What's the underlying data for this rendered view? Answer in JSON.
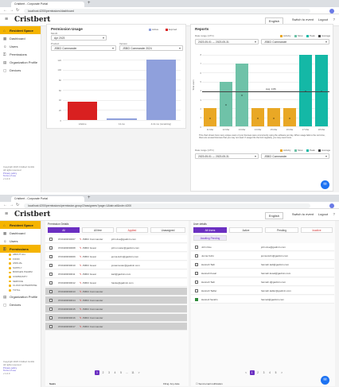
{
  "browser": {
    "tab_title": "Cristbert - Corporate Portal",
    "url_1": "localhost:4200/permissions/dashboard",
    "url_2": "localhost:4200/permissions/permission-group/2/assignees?page=1&tab=all&role=4200",
    "add_tab": "+"
  },
  "header": {
    "logo": "Cristbert",
    "language": "English",
    "switch_account": "Switch to event",
    "logout": "Logout"
  },
  "sidebar": {
    "items": [
      {
        "label": "Resident Space",
        "icon": "home-icon"
      },
      {
        "label": "Dashboard",
        "icon": "dashboard-icon"
      },
      {
        "label": "Users",
        "icon": "users-icon"
      },
      {
        "label": "Permissions",
        "icon": "key-icon"
      },
      {
        "label": "Organization Profile",
        "icon": "building-icon"
      },
      {
        "label": "Devices",
        "icon": "device-icon"
      }
    ],
    "sub_items": [
      "ABOUT ALL",
      "FOOD",
      "ANNUAL",
      "SUPPLY",
      "BORGEN PHARM",
      "COMMUNITY",
      "SERVICE",
      "CLOUD ENTERPRISE",
      "TOTAL"
    ],
    "footer": [
      "Copyright 2023 Cristbert GmbH",
      "All rights reserved",
      "Privacy policy",
      "Terms of use",
      "v 1.0.0"
    ]
  },
  "shot1": {
    "usage_card": {
      "title": "Permission Usage",
      "period_label": "Month",
      "period_value": "Apr 2023",
      "product_label": "Product",
      "product_value": "JSBCI Commander",
      "version_label": "Version",
      "version_value": "JSBCI Commander 2024",
      "legend": [
        "Active",
        "Expired"
      ],
      "ticks": [
        "120",
        "100",
        "80",
        "60",
        "40",
        "20",
        "0"
      ]
    },
    "reports_card": {
      "title": "Reports",
      "date_label": "Date range (UTC)",
      "date_value": "2023-05-01 — 2023-05-31",
      "product_value": "JSBCI Commander",
      "legend": [
        "Activity",
        "Slow",
        "Peak",
        "Average"
      ],
      "avg_label": "Avg: 3.86",
      "ticks": [
        "8",
        "7",
        "6",
        "5",
        "4",
        "3",
        "2",
        "1",
        "0"
      ],
      "y_axis_title": "Total users",
      "note": "This chart shows how many unique users of your licenses were concurrently using the software per day. When usage falls to the red zone, there are unused licenses that you may not need. If usage hits the limit regularly, you may need more.",
      "date_label_2": "Date range (UTC)",
      "date_value_2": "2023-05-01 — 2023-05-31",
      "product_value_2": "JSBCI Commander",
      "legend_2": [
        "Activity",
        "Slow",
        "Peak",
        "Average"
      ]
    }
  },
  "chart_data": [
    {
      "type": "bar",
      "title": "Permission Usage",
      "categories": [
        "Lifetime",
        "12-mo",
        "4-12-mo (remaining)"
      ],
      "values": [
        36,
        3,
        120
      ],
      "colors": [
        "#d92020",
        "#8fa0dc",
        "#8fa0dc"
      ],
      "ylim": [
        0,
        130
      ],
      "grid": true,
      "legend": "top-right"
    },
    {
      "type": "bar",
      "title": "Reports",
      "ylabel": "Total users",
      "categories": [
        "11 Mar",
        "12 Mar",
        "13 Mar",
        "14 Mar",
        "15 Mar",
        "16 Mar",
        "17 Mar",
        "18 Mar"
      ],
      "values": [
        2,
        5,
        7,
        2,
        2,
        2,
        8,
        8
      ],
      "colors": [
        "#e9a825",
        "#6fc2a8",
        "#6fc2a8",
        "#e9a825",
        "#e9a825",
        "#e9a825",
        "#14b8a6",
        "#14b8a6"
      ],
      "average": 3.86,
      "ylim": [
        0,
        8.5
      ],
      "grid": true,
      "legend": "top-right"
    }
  ],
  "shot2": {
    "left_panel": {
      "title": "Permission Details",
      "tabs": [
        "All",
        "All free",
        "Applied",
        "Unassigned"
      ],
      "rows": [
        {
          "code": "0721900030007",
          "role": "JSBCI Commander",
          "email": "john.doe@gadmin.com",
          "locked": false
        },
        {
          "code": "0721900030008",
          "role": "JSBCI Guest",
          "email": "john.muster@gadmin.com",
          "locked": false
        },
        {
          "code": "0721900030009",
          "role": "JSBCI Guest",
          "email": "jenna.kuhn@gadmin.com",
          "locked": false
        },
        {
          "code": "0721900030010",
          "role": "JSBCI Guest",
          "email": "jonasmuster@gadmin.com",
          "locked": false
        },
        {
          "code": "0721900030011",
          "role": "JSBCI Guest",
          "email": "karl@gadmin.com",
          "locked": false
        },
        {
          "code": "0721900030012",
          "role": "JSBCI Guest",
          "email": "hanke@gadmin.com",
          "locked": false
        },
        {
          "code": "0721900030013",
          "role": "JSBCI Commander",
          "email": "",
          "locked": true
        },
        {
          "code": "0721900030014",
          "role": "JSBCI Commander",
          "email": "",
          "locked": true
        },
        {
          "code": "0721900030015",
          "role": "JSBCI Commander",
          "email": "",
          "locked": true
        },
        {
          "code": "0721900030016",
          "role": "JSBCI Commander",
          "email": "",
          "locked": true
        },
        {
          "code": "0721900030017",
          "role": "JSBCI Commander",
          "email": "",
          "locked": true
        }
      ],
      "pages": [
        "1",
        "2",
        "3",
        "4",
        "5",
        "...",
        "11",
        ">"
      ],
      "footer_left": "Seats",
      "footer_right": "Filing: Any date"
    },
    "right_panel": {
      "title": "User details",
      "tabs": [
        "All Users",
        "Active",
        "Pending",
        "Inactive"
      ],
      "subtab": "Awaiting Pending",
      "rows": [
        {
          "name": "John Doe",
          "email": "john.doe@gadmin.com",
          "checked": false
        },
        {
          "name": "Jenna Kuhn",
          "email": "jenna.kuhn@gadmin.com",
          "checked": false
        },
        {
          "name": "Hannah Tadi",
          "email": "hannah.tadi@gadmin.com",
          "checked": false
        },
        {
          "name": "Hannah Kusal",
          "email": "hannah.kusal@gadmin.com",
          "checked": false
        },
        {
          "name": "Hannah Tadi",
          "email": "hannah.t@gadmin.com",
          "checked": false
        },
        {
          "name": "Hannah Tadler",
          "email": "hannah.tadler@gadmin.com",
          "checked": false
        },
        {
          "name": "Hanneli Serafin",
          "email": "hanneli@gadmin.com",
          "checked": true
        }
      ],
      "pages": [
        "<",
        "1",
        "2",
        "3",
        "4",
        "5",
        ">"
      ],
      "footer_label": "Send email notification"
    }
  }
}
